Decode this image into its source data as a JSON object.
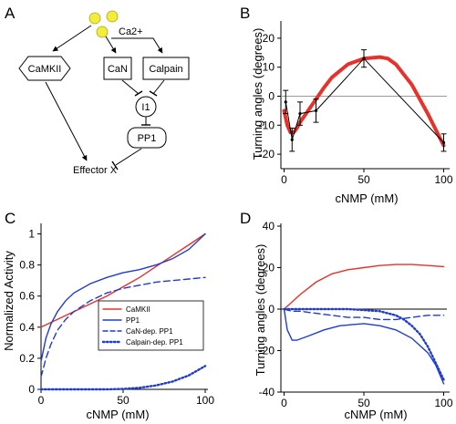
{
  "panels": {
    "A": "A",
    "B": "B",
    "C": "C",
    "D": "D"
  },
  "diagram": {
    "ion": "Ca2+",
    "nodes": {
      "camkii": "CaMKII",
      "can": "CaN",
      "calpain": "Calpain",
      "i1": "I1",
      "pp1": "PP1",
      "effector": "Effector X"
    }
  },
  "colors": {
    "red": "#e8312a",
    "blue": "#1f3bd0",
    "ion": "#f2ec3a",
    "black": "#000000"
  },
  "chart_data": [
    {
      "panel": "B",
      "type": "line",
      "xlabel": "cNMP (mM)",
      "ylabel": "Turning angles (degrees)",
      "xlim": [
        -2,
        102
      ],
      "ylim": [
        -25,
        25
      ],
      "xticks": [
        0,
        50,
        100
      ],
      "yticks": [
        -20,
        -10,
        0,
        10,
        20
      ],
      "zero_line": true,
      "series": [
        {
          "kind": "measured",
          "color": "#000000",
          "x": [
            1,
            5,
            10,
            20,
            50,
            100
          ],
          "y": [
            -2,
            -15,
            -6,
            -5,
            13,
            -16
          ],
          "err": [
            4,
            4,
            4,
            4,
            3,
            3
          ]
        },
        {
          "kind": "model",
          "color": "#e8312a",
          "x": [
            0,
            2,
            4,
            6,
            8,
            10,
            15,
            20,
            25,
            30,
            40,
            50,
            60,
            65,
            70,
            80,
            90,
            100
          ],
          "y": [
            -5,
            -10,
            -12.5,
            -12.5,
            -11,
            -9,
            -5,
            -1,
            3,
            6.5,
            11,
            13,
            13.5,
            13,
            11,
            4,
            -6,
            -17
          ]
        }
      ]
    },
    {
      "panel": "C",
      "type": "line",
      "xlabel": "cNMP (mM)",
      "ylabel": "Normalized Activity",
      "xlim": [
        0,
        100
      ],
      "ylim": [
        0,
        1.05
      ],
      "xticks": [
        0,
        50,
        100
      ],
      "yticks": [
        0,
        0.2,
        0.4,
        0.6,
        0.8,
        1
      ],
      "legend": [
        "CaMKII",
        "PP1",
        "CaN-dep. PP1",
        "Calpain-dep. PP1"
      ],
      "series": [
        {
          "name": "CaMKII",
          "color": "#e8312a",
          "dash": "solid",
          "x": [
            0,
            10,
            20,
            30,
            40,
            50,
            60,
            70,
            80,
            90,
            100
          ],
          "y": [
            0.4,
            0.45,
            0.5,
            0.55,
            0.6,
            0.66,
            0.72,
            0.79,
            0.86,
            0.93,
            1.0
          ]
        },
        {
          "name": "PP1",
          "color": "#1f3bd0",
          "dash": "solid",
          "x": [
            0,
            3,
            6,
            10,
            15,
            20,
            30,
            40,
            50,
            60,
            70,
            80,
            90,
            100
          ],
          "y": [
            0.18,
            0.33,
            0.42,
            0.5,
            0.57,
            0.62,
            0.68,
            0.72,
            0.75,
            0.77,
            0.8,
            0.84,
            0.9,
            1.0
          ]
        },
        {
          "name": "CaN-dep. PP1",
          "color": "#1f3bd0",
          "dash": "dashed",
          "x": [
            0,
            3,
            6,
            10,
            15,
            20,
            30,
            40,
            50,
            60,
            70,
            80,
            90,
            100
          ],
          "y": [
            0.08,
            0.2,
            0.29,
            0.38,
            0.45,
            0.5,
            0.57,
            0.62,
            0.65,
            0.67,
            0.69,
            0.7,
            0.71,
            0.72
          ]
        },
        {
          "name": "Calpain-dep. PP1",
          "color": "#1f3bd0",
          "dash": "dotted",
          "x": [
            0,
            20,
            40,
            50,
            60,
            70,
            80,
            90,
            100
          ],
          "y": [
            0,
            0,
            0,
            0.003,
            0.01,
            0.025,
            0.05,
            0.09,
            0.15
          ]
        }
      ]
    },
    {
      "panel": "D",
      "type": "line",
      "xlabel": "cNMP (mM)",
      "ylabel": "Turning angles (degrees)",
      "xlim": [
        -2,
        102
      ],
      "ylim": [
        -40,
        40
      ],
      "xticks": [
        0,
        50,
        100
      ],
      "yticks": [
        -40,
        -20,
        0,
        20,
        40
      ],
      "zero_line": true,
      "series": [
        {
          "kind": "CaMKII",
          "color": "#e8312a",
          "dash": "solid",
          "x": [
            0,
            10,
            20,
            30,
            40,
            50,
            60,
            70,
            80,
            90,
            100
          ],
          "y": [
            0,
            7,
            13,
            17,
            19,
            20,
            21,
            21.5,
            21.5,
            21,
            20.5
          ]
        },
        {
          "kind": "PP1",
          "color": "#1f3bd0",
          "dash": "solid",
          "x": [
            0,
            2,
            5,
            8,
            15,
            25,
            35,
            50,
            60,
            70,
            80,
            90,
            95,
            100
          ],
          "y": [
            0,
            -10,
            -15,
            -15,
            -13,
            -10,
            -8,
            -7,
            -8,
            -10,
            -14,
            -21,
            -27,
            -36
          ]
        },
        {
          "kind": "CaN-dep. PP1",
          "color": "#1f3bd0",
          "dash": "dashed",
          "x": [
            0,
            2,
            5,
            10,
            20,
            30,
            40,
            50,
            60,
            70,
            80,
            90,
            100
          ],
          "y": [
            0,
            -0.5,
            -1,
            -1,
            -2,
            -3,
            -4,
            -4,
            -5,
            -5,
            -4,
            -3,
            -3
          ]
        },
        {
          "kind": "Calpain-dep. PP1",
          "color": "#1f3bd0",
          "dash": "dotted",
          "x": [
            0,
            10,
            20,
            30,
            40,
            50,
            60,
            65,
            70,
            75,
            80,
            85,
            90,
            95,
            100
          ],
          "y": [
            0,
            0,
            0,
            0,
            0,
            -0.5,
            -1,
            -2,
            -3,
            -5,
            -8,
            -12,
            -18,
            -26,
            -34
          ]
        }
      ]
    }
  ]
}
